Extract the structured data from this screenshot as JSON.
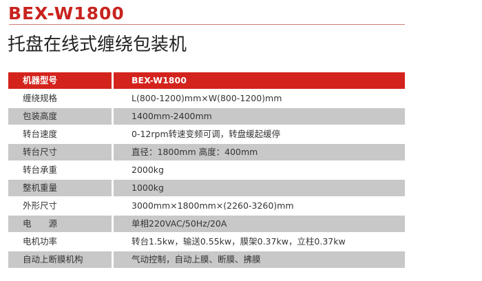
{
  "title": "BEX-W1800",
  "subtitle": "托盘在线式缠绕包装机",
  "table": {
    "header": [
      "机器型号",
      "BEX-W1800"
    ],
    "rows": [
      [
        "缠绕规格",
        "L(800-1200)mm×W(800-1200)mm"
      ],
      [
        "包装高度",
        "1400mm-2400mm"
      ],
      [
        "转台速度",
        "0-12rpm转速变频可调，转盘缓起缓停"
      ],
      [
        "转台尺寸",
        "直径：1800mm   高度：400mm"
      ],
      [
        "转台承重",
        "2000kg"
      ],
      [
        "整机重量",
        "1000kg"
      ],
      [
        "外形尺寸",
        "3000mm×1800mm×(2260-3260)mm"
      ],
      [
        "电　　源",
        "单相220VAC/50Hz/20A"
      ],
      [
        "电机功率",
        "转台1.5kw，输送0.55kw，膜架0.37kw，立柱0.37kw"
      ],
      [
        "自动上断膜机构",
        "气动控制，自动上膜、断膜、拂膜"
      ]
    ]
  },
  "colors": {
    "accent": "#d4231d",
    "stripe": "#c8c8c8"
  }
}
